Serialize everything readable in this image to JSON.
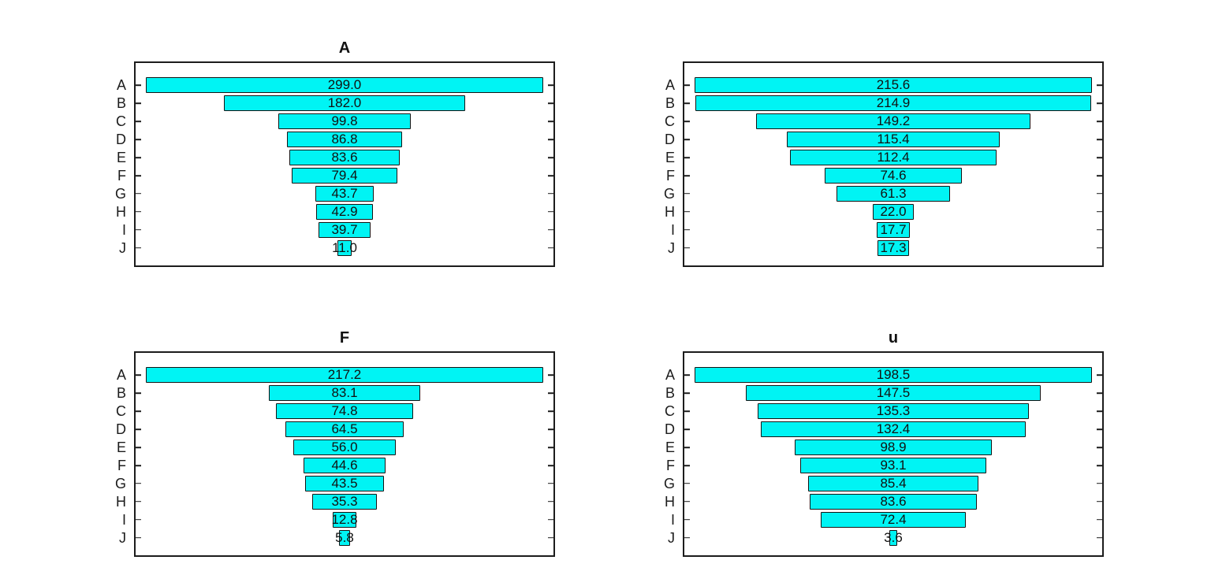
{
  "figure": {
    "background": "#ffffff"
  },
  "style": {
    "bar_fill": "#00f4f4",
    "bar_edge": "#141414",
    "axis_color": "#1c1c1c",
    "text_color": "#111111"
  },
  "chart_data": {
    "type": "bar",
    "subtype": "funnel-horizontal-centered",
    "layout": "2x2-subplots",
    "grid": false,
    "legend": false,
    "categories": [
      "A",
      "B",
      "C",
      "D",
      "E",
      "F",
      "G",
      "H",
      "I",
      "J"
    ],
    "value_label_format": "one-decimal-on-bar",
    "bar_fraction_of_axis": 0.95,
    "charts": [
      {
        "title": "A",
        "position": "top-left",
        "values": [
          299.0,
          182.0,
          99.8,
          86.8,
          83.6,
          79.4,
          43.7,
          42.9,
          39.7,
          11.0
        ]
      },
      {
        "title": "",
        "position": "top-right",
        "values": [
          215.6,
          214.9,
          149.2,
          115.4,
          112.4,
          74.6,
          61.3,
          22.0,
          17.7,
          17.3
        ]
      },
      {
        "title": "F",
        "position": "bottom-left",
        "values": [
          217.2,
          83.1,
          74.8,
          64.5,
          56.0,
          44.6,
          43.5,
          35.3,
          12.8,
          5.8
        ]
      },
      {
        "title": "u",
        "position": "bottom-right",
        "values": [
          198.5,
          147.5,
          135.3,
          132.4,
          98.9,
          93.1,
          85.4,
          83.6,
          72.4,
          3.6
        ]
      }
    ]
  }
}
